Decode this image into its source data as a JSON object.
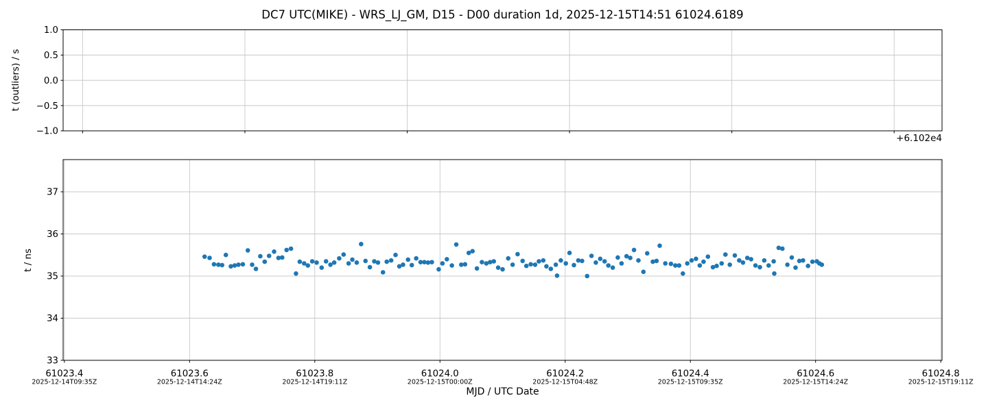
{
  "title": "DC7 UTC(MIKE) - WRS_LJ_GM, D15 - D00 duration 1d, 2025-12-15T14:51 61024.6189",
  "background_color": "#ffffff",
  "chart_data": [
    {
      "type": "scatter",
      "panel": "outliers",
      "ylabel": "t (outliers) / s",
      "offset_text": "+6.102e4",
      "xlim": [
        61023.576,
        61024.659
      ],
      "ylim": [
        -1.0,
        1.0
      ],
      "xticks": [
        61023.6,
        61023.8,
        61024.0,
        61024.2,
        61024.4,
        61024.6
      ],
      "ytick_values": [
        1.0,
        0.5,
        0.0,
        -0.5,
        -1.0
      ],
      "ytick_labels": [
        "1.0",
        "0.5",
        "0.0",
        "−0.5",
        "−1.0"
      ],
      "grid": true,
      "grid_color": "#c8c8c8",
      "legend": "none",
      "points": []
    },
    {
      "type": "scatter",
      "panel": "main",
      "ylabel": "t / ns",
      "xlabel": "MJD / UTC Date",
      "marker_color": "#1f77b4",
      "xlim": [
        61023.398,
        61024.802
      ],
      "ylim": [
        33,
        37.764
      ],
      "xticks": [
        {
          "value": 61023.4,
          "mjd": "61023.4",
          "utc": "2025-12-14T09:35Z"
        },
        {
          "value": 61023.6,
          "mjd": "61023.6",
          "utc": "2025-12-14T14:24Z"
        },
        {
          "value": 61023.8,
          "mjd": "61023.8",
          "utc": "2025-12-14T19:11Z"
        },
        {
          "value": 61024.0,
          "mjd": "61024.0",
          "utc": "2025-12-15T00:00Z"
        },
        {
          "value": 61024.2,
          "mjd": "61024.2",
          "utc": "2025-12-15T04:48Z"
        },
        {
          "value": 61024.4,
          "mjd": "61024.4",
          "utc": "2025-12-15T09:35Z"
        },
        {
          "value": 61024.6,
          "mjd": "61024.6",
          "utc": "2025-12-15T14:24Z"
        },
        {
          "value": 61024.8,
          "mjd": "61024.8",
          "utc": "2025-12-15T19:11Z"
        }
      ],
      "ytick_values": [
        37,
        36,
        35,
        34,
        33
      ],
      "ytick_labels": [
        "37",
        "36",
        "35",
        "34",
        "33"
      ],
      "grid": true,
      "grid_color": "#c8c8c8",
      "legend": "none",
      "points": [
        [
          61023.624,
          35.46
        ],
        [
          61023.632,
          35.43
        ],
        [
          61023.639,
          35.28
        ],
        [
          61023.646,
          35.27
        ],
        [
          61023.652,
          35.26
        ],
        [
          61023.658,
          35.5
        ],
        [
          61023.666,
          35.23
        ],
        [
          61023.672,
          35.25
        ],
        [
          61023.678,
          35.27
        ],
        [
          61023.685,
          35.28
        ],
        [
          61023.693,
          35.61
        ],
        [
          61023.7,
          35.27
        ],
        [
          61023.706,
          35.17
        ],
        [
          61023.713,
          35.47
        ],
        [
          61023.72,
          35.34
        ],
        [
          61023.727,
          35.48
        ],
        [
          61023.735,
          35.58
        ],
        [
          61023.742,
          35.43
        ],
        [
          61023.748,
          35.44
        ],
        [
          61023.755,
          35.62
        ],
        [
          61023.762,
          35.65
        ],
        [
          61023.77,
          35.06
        ],
        [
          61023.776,
          35.34
        ],
        [
          61023.783,
          35.3
        ],
        [
          61023.789,
          35.25
        ],
        [
          61023.796,
          35.35
        ],
        [
          61023.803,
          35.32
        ],
        [
          61023.811,
          35.2
        ],
        [
          61023.818,
          35.35
        ],
        [
          61023.825,
          35.27
        ],
        [
          61023.831,
          35.32
        ],
        [
          61023.839,
          35.42
        ],
        [
          61023.846,
          35.51
        ],
        [
          61023.854,
          35.3
        ],
        [
          61023.86,
          35.39
        ],
        [
          61023.867,
          35.32
        ],
        [
          61023.874,
          35.76
        ],
        [
          61023.881,
          35.36
        ],
        [
          61023.888,
          35.21
        ],
        [
          61023.895,
          35.35
        ],
        [
          61023.901,
          35.32
        ],
        [
          61023.909,
          35.09
        ],
        [
          61023.915,
          35.34
        ],
        [
          61023.922,
          35.37
        ],
        [
          61023.929,
          35.5
        ],
        [
          61023.935,
          35.23
        ],
        [
          61023.941,
          35.27
        ],
        [
          61023.949,
          35.39
        ],
        [
          61023.955,
          35.26
        ],
        [
          61023.962,
          35.42
        ],
        [
          61023.969,
          35.33
        ],
        [
          61023.975,
          35.33
        ],
        [
          61023.981,
          35.32
        ],
        [
          61023.987,
          35.33
        ],
        [
          61023.998,
          35.16
        ],
        [
          61024.004,
          35.3
        ],
        [
          61024.011,
          35.4
        ],
        [
          61024.019,
          35.25
        ],
        [
          61024.026,
          35.75
        ],
        [
          61024.034,
          35.27
        ],
        [
          61024.04,
          35.28
        ],
        [
          61024.046,
          35.55
        ],
        [
          61024.052,
          35.59
        ],
        [
          61024.059,
          35.18
        ],
        [
          61024.067,
          35.33
        ],
        [
          61024.074,
          35.3
        ],
        [
          61024.08,
          35.33
        ],
        [
          61024.086,
          35.35
        ],
        [
          61024.093,
          35.2
        ],
        [
          61024.1,
          35.16
        ],
        [
          61024.109,
          35.42
        ],
        [
          61024.116,
          35.27
        ],
        [
          61024.124,
          35.52
        ],
        [
          61024.132,
          35.36
        ],
        [
          61024.138,
          35.24
        ],
        [
          61024.145,
          35.28
        ],
        [
          61024.152,
          35.27
        ],
        [
          61024.158,
          35.35
        ],
        [
          61024.165,
          35.37
        ],
        [
          61024.17,
          35.23
        ],
        [
          61024.177,
          35.17
        ],
        [
          61024.185,
          35.27
        ],
        [
          61024.187,
          35.01
        ],
        [
          61024.193,
          35.37
        ],
        [
          61024.201,
          35.3
        ],
        [
          61024.207,
          35.55
        ],
        [
          61024.214,
          35.26
        ],
        [
          61024.221,
          35.37
        ],
        [
          61024.227,
          35.36
        ],
        [
          61024.235,
          35.0
        ],
        [
          61024.242,
          35.48
        ],
        [
          61024.249,
          35.32
        ],
        [
          61024.256,
          35.41
        ],
        [
          61024.263,
          35.35
        ],
        [
          61024.269,
          35.25
        ],
        [
          61024.276,
          35.2
        ],
        [
          61024.284,
          35.44
        ],
        [
          61024.29,
          35.3
        ],
        [
          61024.298,
          35.47
        ],
        [
          61024.304,
          35.43
        ],
        [
          61024.31,
          35.62
        ],
        [
          61024.317,
          35.37
        ],
        [
          61024.325,
          35.1
        ],
        [
          61024.331,
          35.54
        ],
        [
          61024.34,
          35.34
        ],
        [
          61024.346,
          35.36
        ],
        [
          61024.351,
          35.72
        ],
        [
          61024.36,
          35.3
        ],
        [
          61024.369,
          35.29
        ],
        [
          61024.376,
          35.25
        ],
        [
          61024.382,
          35.25
        ],
        [
          61024.388,
          35.06
        ],
        [
          61024.395,
          35.3
        ],
        [
          61024.402,
          35.37
        ],
        [
          61024.409,
          35.41
        ],
        [
          61024.415,
          35.25
        ],
        [
          61024.421,
          35.34
        ],
        [
          61024.428,
          35.46
        ],
        [
          61024.436,
          35.21
        ],
        [
          61024.442,
          35.24
        ],
        [
          61024.45,
          35.3
        ],
        [
          61024.456,
          35.51
        ],
        [
          61024.463,
          35.27
        ],
        [
          61024.471,
          35.49
        ],
        [
          61024.478,
          35.37
        ],
        [
          61024.484,
          35.32
        ],
        [
          61024.491,
          35.43
        ],
        [
          61024.497,
          35.4
        ],
        [
          61024.504,
          35.25
        ],
        [
          61024.511,
          35.21
        ],
        [
          61024.518,
          35.37
        ],
        [
          61024.525,
          35.25
        ],
        [
          61024.533,
          35.35
        ],
        [
          61024.534,
          35.06
        ],
        [
          61024.541,
          35.67
        ],
        [
          61024.547,
          35.65
        ],
        [
          61024.555,
          35.27
        ],
        [
          61024.562,
          35.44
        ],
        [
          61024.568,
          35.2
        ],
        [
          61024.574,
          35.36
        ],
        [
          61024.58,
          35.37
        ],
        [
          61024.588,
          35.24
        ],
        [
          61024.595,
          35.34
        ],
        [
          61024.602,
          35.35
        ],
        [
          61024.606,
          35.3
        ],
        [
          61024.61,
          35.27
        ]
      ]
    }
  ]
}
